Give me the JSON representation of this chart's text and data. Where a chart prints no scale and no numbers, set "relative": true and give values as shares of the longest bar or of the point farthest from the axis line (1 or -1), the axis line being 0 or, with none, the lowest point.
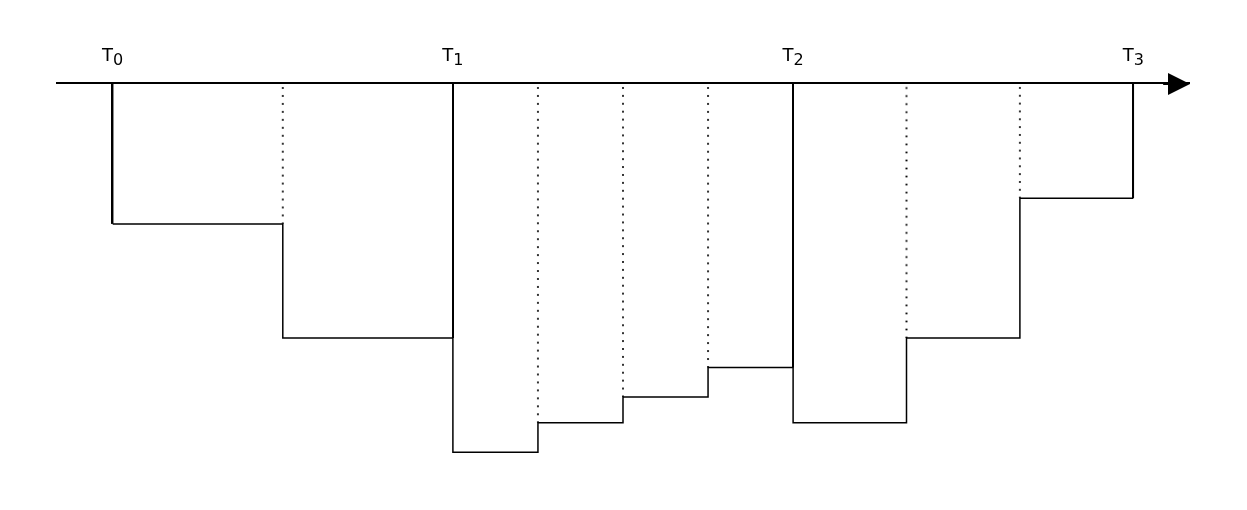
{
  "chart_data": {
    "type": "step",
    "relative": true,
    "categories": [
      "T$_{0}$",
      null,
      null,
      null,
      null,
      null,
      null,
      null,
      null,
      null,
      null,
      null,
      "T$_{1}$",
      null,
      null,
      null,
      null,
      null,
      null,
      null,
      null,
      null,
      null,
      null,
      "T$_{2}$",
      null,
      null,
      null,
      null,
      null,
      null,
      null,
      null,
      null,
      null,
      null,
      "T$_{3}$"
    ],
    "series": [
      {
        "color": "#000000",
        "line_style": "solid",
        "values": [
          -0.38,
          -0.38,
          -0.38,
          -0.38,
          -0.38,
          -0.38,
          -0.69,
          -0.69,
          -0.69,
          -0.69,
          -0.69,
          -0.69,
          -1,
          -1,
          -1,
          -0.92,
          -0.92,
          -0.92,
          -0.85,
          -0.85,
          -0.85,
          -0.77,
          -0.77,
          -0.77,
          -0.92,
          -0.92,
          -0.92,
          -0.92,
          -0.69,
          -0.69,
          -0.69,
          -0.69,
          -0.31,
          -0.31,
          -0.31,
          -0.31,
          -0.31
        ]
      },
      {
        "type": "bar",
        "color": "#000000",
        "line_style": "solid",
        "values": [
          -0.38,
          null,
          null,
          null,
          null,
          null,
          null,
          null,
          null,
          null,
          null,
          null,
          -0.69,
          null,
          null,
          null,
          null,
          null,
          null,
          null,
          null,
          null,
          null,
          null,
          -0.77,
          null,
          null,
          null,
          null,
          null,
          null,
          null,
          null,
          null,
          null,
          null,
          -0.31
        ]
      },
      {
        "type": "bar",
        "color": "#000000",
        "line_style": "dotted",
        "values": [
          null,
          null,
          null,
          null,
          null,
          null,
          -0.38,
          null,
          null,
          null,
          null,
          null,
          null,
          null,
          null,
          -0.92,
          null,
          null,
          -0.85,
          null,
          null,
          -0.77,
          null,
          null,
          null,
          null,
          null,
          null,
          -0.69,
          null,
          null,
          null,
          -0.31,
          null,
          null,
          null,
          null
        ]
      }
    ],
    "marker": "none",
    "grid": false,
    "tick_labels": "x"
  }
}
